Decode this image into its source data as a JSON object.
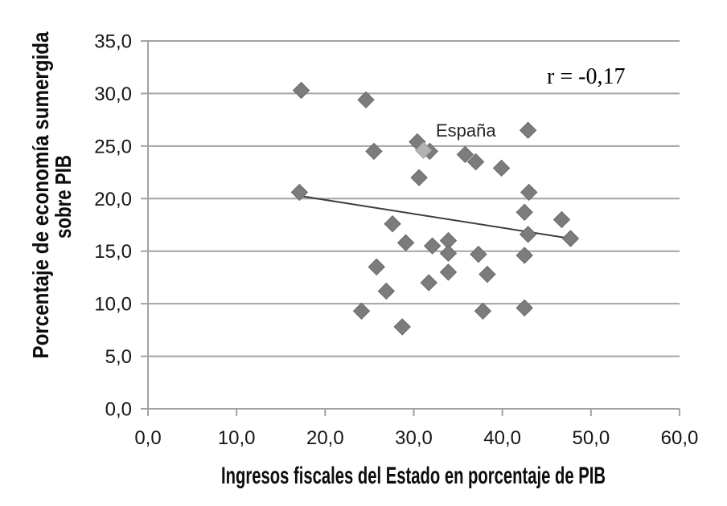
{
  "chart_data": {
    "type": "scatter",
    "xlabel": "Ingresos fiscales del Estado en porcentaje de PIB",
    "ylabel_line1": "Porcentaje de economía sumergida",
    "ylabel_line2": "sobre PIB",
    "annotation": "r = -0,17",
    "espana_label": "España",
    "xlim": [
      0,
      60
    ],
    "ylim": [
      0,
      35
    ],
    "x_ticks": [
      "0,0",
      "10,0",
      "20,0",
      "30,0",
      "40,0",
      "50,0",
      "60,0"
    ],
    "y_ticks": [
      "0,0",
      "5,0",
      "10,0",
      "15,0",
      "20,0",
      "25,0",
      "30,0",
      "35,0"
    ],
    "x_tick_values": [
      0,
      10,
      20,
      30,
      40,
      50,
      60
    ],
    "y_tick_values": [
      0,
      5,
      10,
      15,
      20,
      25,
      30,
      35
    ],
    "grid": "horizontal",
    "legend": "none",
    "marker": "diamond",
    "marker_color": "#7c7c7c",
    "marker_edge_color": "#696969",
    "grid_color": "#a3a3a3",
    "points": [
      [
        17.1,
        20.6
      ],
      [
        17.3,
        30.3
      ],
      [
        24.1,
        9.3
      ],
      [
        24.6,
        29.4
      ],
      [
        25.5,
        24.5
      ],
      [
        25.8,
        13.5
      ],
      [
        26.9,
        11.2
      ],
      [
        27.6,
        17.6
      ],
      [
        28.7,
        7.8
      ],
      [
        29.1,
        15.8
      ],
      [
        30.4,
        25.4
      ],
      [
        30.6,
        22.0
      ],
      [
        31.8,
        24.5
      ],
      [
        31.7,
        12.0
      ],
      [
        32.1,
        15.5
      ],
      [
        33.9,
        16.0
      ],
      [
        33.9,
        14.8
      ],
      [
        33.9,
        13.0
      ],
      [
        35.8,
        24.2
      ],
      [
        37.0,
        23.5
      ],
      [
        37.3,
        14.7
      ],
      [
        37.8,
        9.3
      ],
      [
        38.3,
        12.8
      ],
      [
        39.9,
        22.9
      ],
      [
        42.5,
        18.7
      ],
      [
        42.5,
        14.6
      ],
      [
        42.5,
        9.6
      ],
      [
        42.9,
        26.5
      ],
      [
        42.9,
        16.6
      ],
      [
        43.0,
        20.6
      ],
      [
        46.7,
        18.0
      ],
      [
        47.7,
        16.2
      ]
    ],
    "espana_point": {
      "x": 31.1,
      "y": 24.6,
      "color": "#b2b2b2",
      "edge_color": "#9e9e9e"
    },
    "trendline": {
      "x1": 17.2,
      "y1": 20.25,
      "x2": 47.7,
      "y2": 16.2,
      "color": "#3d3d3d"
    }
  }
}
